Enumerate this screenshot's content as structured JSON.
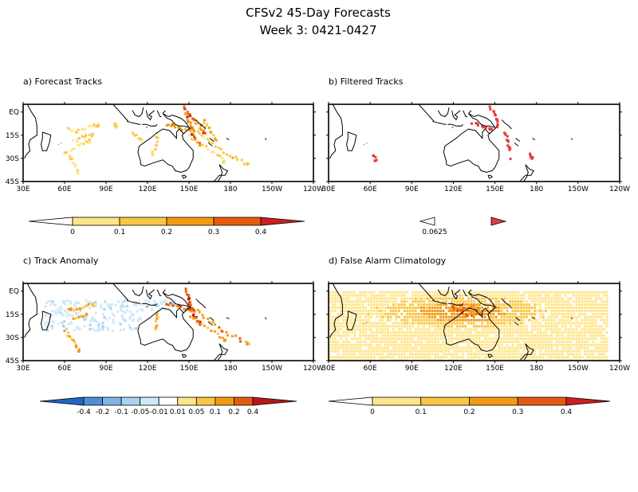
{
  "header": {
    "title": "CFSv2 45-Day Forecasts",
    "subtitle": "Week 3: 0421-0427"
  },
  "chart_data": [
    {
      "type": "heatmap",
      "title": "a) Forecast Tracks",
      "lon_ticks": [
        "30E",
        "60E",
        "90E",
        "120E",
        "150E",
        "180",
        "150W",
        "120W"
      ],
      "lat_ticks": [
        "EQ",
        "15S",
        "30S",
        "45S"
      ],
      "xlim": [
        30,
        240
      ],
      "ylim": [
        -45,
        5
      ],
      "colorbar": {
        "levels": [
          "0",
          "0.1",
          "0.2",
          "0.3",
          "0.4"
        ],
        "colors": [
          "#ffffff",
          "#ffe58a",
          "#f9c744",
          "#f39a12",
          "#e65a0f",
          "#cc1f1f"
        ]
      },
      "tracks": [
        {
          "intensity": 0.35,
          "points": [
            [
              147,
              2
            ],
            [
              148,
              -2
            ],
            [
              149,
              -5
            ],
            [
              150,
              -8
            ],
            [
              151,
              -11
            ],
            [
              152,
              -14
            ],
            [
              154,
              -17
            ],
            [
              157,
              -20
            ]
          ]
        },
        {
          "intensity": 0.25,
          "points": [
            [
              133,
              -7
            ],
            [
              137,
              -8
            ],
            [
              141,
              -9
            ],
            [
              145,
              -10
            ],
            [
              149,
              -11
            ],
            [
              153,
              -12
            ]
          ]
        },
        {
          "intensity": 0.3,
          "points": [
            [
              146,
              4
            ],
            [
              148,
              0
            ],
            [
              151,
              -3
            ],
            [
              155,
              -6
            ],
            [
              158,
              -9
            ],
            [
              160,
              -12
            ]
          ]
        },
        {
          "intensity": 0.15,
          "points": [
            [
              155,
              -12
            ],
            [
              160,
              -16
            ],
            [
              166,
              -20
            ],
            [
              172,
              -24
            ],
            [
              178,
              -27
            ],
            [
              185,
              -30
            ],
            [
              192,
              -33
            ]
          ]
        },
        {
          "intensity": 0.12,
          "points": [
            [
              150,
              -15
            ],
            [
              156,
              -19
            ],
            [
              163,
              -23
            ],
            [
              170,
              -27
            ],
            [
              175,
              -31
            ]
          ]
        },
        {
          "intensity": 0.12,
          "points": [
            [
              126,
              -13
            ],
            [
              126,
              -18
            ],
            [
              125,
              -23
            ],
            [
              123,
              -27
            ]
          ]
        },
        {
          "intensity": 0.12,
          "points": [
            [
              108,
              -13
            ],
            [
              111,
              -15
            ],
            [
              114,
              -17
            ]
          ]
        },
        {
          "intensity": 0.1,
          "points": [
            [
              62,
              -10
            ],
            [
              66,
              -12
            ],
            [
              71,
              -11
            ],
            [
              76,
              -9
            ],
            [
              80,
              -8
            ],
            [
              84,
              -8
            ]
          ]
        },
        {
          "intensity": 0.1,
          "points": [
            [
              66,
              -18
            ],
            [
              70,
              -16
            ],
            [
              75,
              -15
            ],
            [
              79,
              -14
            ]
          ]
        },
        {
          "intensity": 0.1,
          "points": [
            [
              64,
              -24
            ],
            [
              68,
              -21
            ],
            [
              73,
              -19
            ],
            [
              78,
              -18
            ]
          ]
        },
        {
          "intensity": 0.1,
          "points": [
            [
              60,
              -25
            ],
            [
              63,
              -29
            ],
            [
              66,
              -33
            ],
            [
              69,
              -38
            ]
          ]
        },
        {
          "intensity": 0.12,
          "points": [
            [
              95,
              -7
            ],
            [
              97,
              -9
            ]
          ]
        },
        {
          "intensity": 0.2,
          "points": [
            [
              160,
              -5
            ],
            [
              162,
              -9
            ],
            [
              165,
              -13
            ],
            [
              168,
              -17
            ]
          ]
        }
      ]
    },
    {
      "type": "heatmap",
      "title": "b) Filtered Tracks",
      "lon_ticks": [
        "30E",
        "60E",
        "90E",
        "120E",
        "150E",
        "180",
        "150W",
        "120W"
      ],
      "xlim": [
        30,
        240
      ],
      "ylim": [
        -45,
        5
      ],
      "colorbar": {
        "levels": [
          "0.0625"
        ],
        "colors": [
          "#ffffff",
          "#e83a3a"
        ]
      },
      "tracks": [
        {
          "intensity": 0.0625,
          "points": [
            [
              146,
              4
            ],
            [
              148,
              1
            ],
            [
              149,
              -2
            ],
            [
              150,
              -5
            ],
            [
              151,
              -8
            ]
          ]
        },
        {
          "intensity": 0.0625,
          "points": [
            [
              133,
              -7
            ],
            [
              138,
              -8
            ],
            [
              142,
              -9
            ],
            [
              146,
              -10
            ]
          ]
        },
        {
          "intensity": 0.0625,
          "points": [
            [
              156,
              -12
            ],
            [
              158,
              -15
            ],
            [
              159,
              -19
            ],
            [
              160,
              -23
            ]
          ]
        },
        {
          "intensity": 0.0625,
          "points": [
            [
              175,
              -27
            ],
            [
              176,
              -29
            ]
          ]
        },
        {
          "intensity": 0.0625,
          "points": [
            [
              62,
              -27
            ],
            [
              63,
              -30
            ]
          ]
        },
        {
          "intensity": 0.0625,
          "points": [
            [
              160,
              -30
            ]
          ]
        }
      ]
    },
    {
      "type": "heatmap",
      "title": "c) Track Anomaly",
      "lon_ticks": [
        "30E",
        "60E",
        "90E",
        "120E",
        "150E",
        "180",
        "150W",
        "120W"
      ],
      "lat_ticks": [
        "EQ",
        "15S",
        "30S",
        "45S"
      ],
      "xlim": [
        30,
        240
      ],
      "ylim": [
        -45,
        5
      ],
      "colorbar": {
        "levels": [
          "-0.4",
          "-0.2",
          "-0.1",
          "-0.05",
          "-0.01",
          "0.01",
          "0.05",
          "0.1",
          "0.2",
          "0.4"
        ],
        "colors": [
          "#2166c4",
          "#4d8fd6",
          "#7fb4e6",
          "#a9d3f0",
          "#cfe9f7",
          "#ffffff",
          "#ffe58a",
          "#f9c744",
          "#f39a12",
          "#e65a0f",
          "#b81818"
        ]
      },
      "negative_region": {
        "lon": [
          45,
          140
        ],
        "lat": [
          -25,
          -5
        ],
        "value": -0.01
      },
      "tracks": [
        {
          "intensity": 0.35,
          "points": [
            [
              147,
              2
            ],
            [
              148,
              -2
            ],
            [
              149,
              -5
            ],
            [
              150,
              -8
            ],
            [
              151,
              -11
            ],
            [
              152,
              -14
            ],
            [
              154,
              -17
            ],
            [
              157,
              -20
            ]
          ]
        },
        {
          "intensity": 0.25,
          "points": [
            [
              133,
              -7
            ],
            [
              137,
              -8
            ],
            [
              141,
              -9
            ],
            [
              145,
              -10
            ],
            [
              149,
              -11
            ],
            [
              153,
              -12
            ]
          ]
        },
        {
          "intensity": 0.15,
          "points": [
            [
              155,
              -12
            ],
            [
              160,
              -16
            ],
            [
              166,
              -20
            ],
            [
              172,
              -24
            ],
            [
              178,
              -27
            ],
            [
              185,
              -30
            ],
            [
              192,
              -33
            ]
          ]
        },
        {
          "intensity": 0.12,
          "points": [
            [
              150,
              -15
            ],
            [
              156,
              -19
            ],
            [
              163,
              -23
            ],
            [
              170,
              -27
            ],
            [
              175,
              -31
            ]
          ]
        },
        {
          "intensity": 0.1,
          "points": [
            [
              62,
              -10
            ],
            [
              66,
              -12
            ],
            [
              71,
              -11
            ],
            [
              76,
              -9
            ],
            [
              80,
              -8
            ]
          ]
        },
        {
          "intensity": 0.1,
          "points": [
            [
              66,
              -18
            ],
            [
              70,
              -16
            ],
            [
              75,
              -15
            ]
          ]
        },
        {
          "intensity": 0.1,
          "points": [
            [
              60,
              -25
            ],
            [
              63,
              -29
            ],
            [
              66,
              -33
            ],
            [
              69,
              -38
            ]
          ]
        },
        {
          "intensity": 0.12,
          "points": [
            [
              126,
              -13
            ],
            [
              126,
              -18
            ],
            [
              125,
              -23
            ]
          ]
        }
      ]
    },
    {
      "type": "heatmap",
      "title": "d) False Alarm Climatology",
      "lon_ticks": [
        "30E",
        "60E",
        "90E",
        "120E",
        "150E",
        "180",
        "150W",
        "120W"
      ],
      "xlim": [
        30,
        240
      ],
      "ylim": [
        -45,
        5
      ],
      "colorbar": {
        "levels": [
          "0",
          "0.1",
          "0.2",
          "0.3",
          "0.4"
        ],
        "colors": [
          "#ffffff",
          "#ffe58a",
          "#f9c744",
          "#f39a12",
          "#e65a0f",
          "#cc1f1f"
        ]
      },
      "field_extent": {
        "lon": [
          30,
          232
        ],
        "lat": [
          -45,
          0
        ]
      },
      "hotspot": {
        "lon": 125,
        "lat": -13
      }
    }
  ]
}
